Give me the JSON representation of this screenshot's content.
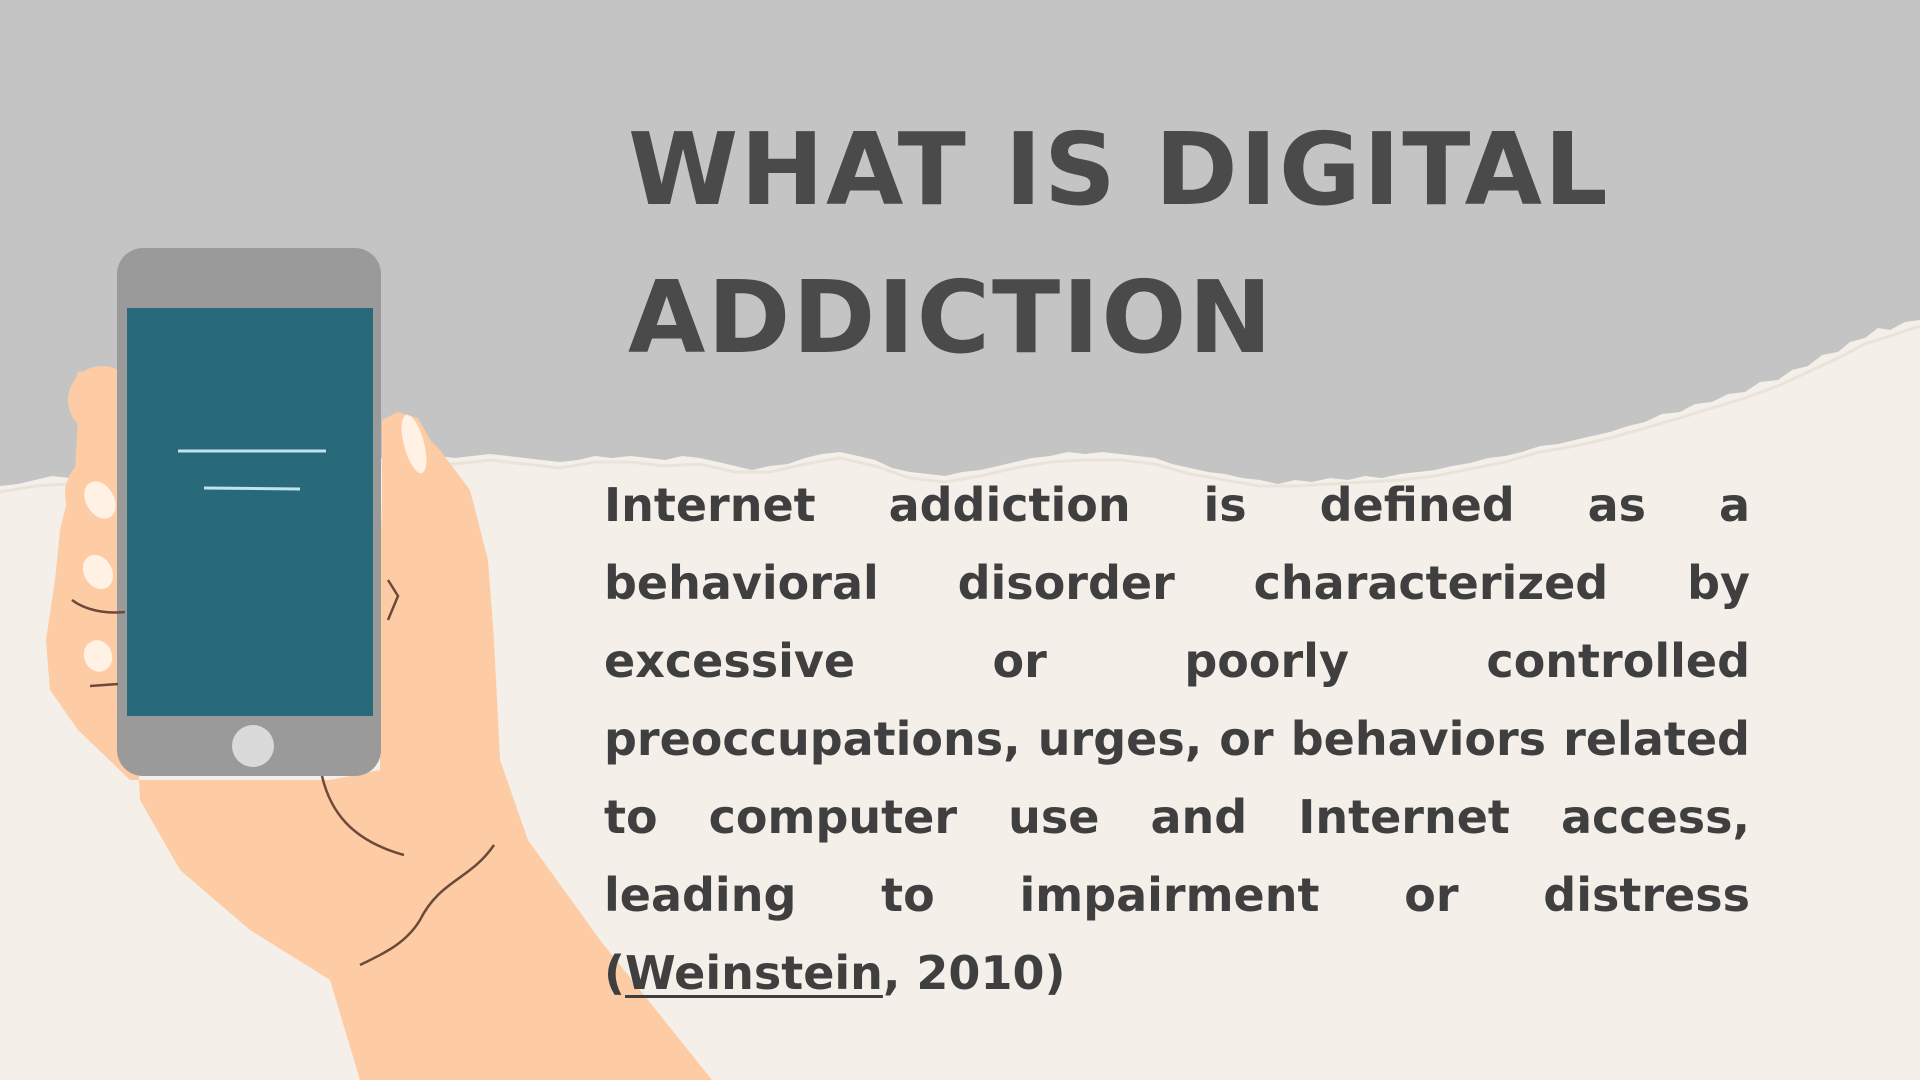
{
  "slide": {
    "title": "WHAT IS DIGITAL ADDICTION",
    "body_before_link": "Internet addiction is defined as a behavioral disorder characterized by excessive or poorly controlled preoccupations, urges, or behaviors related to computer use and Internet access, leading to impairment or distress (",
    "citation_link": "Weinstein",
    "body_after_link": ", 2010)"
  },
  "colors": {
    "top_band": "#c4c4c4",
    "paper": "#f4efe8",
    "title_text": "#4a4a4a",
    "body_text": "#3f3f3f",
    "skin": "#fdcca4",
    "phone_body": "#9a9a9a",
    "phone_screen": "#296a7a"
  },
  "illustration": {
    "icon": "hand-holding-phone-icon"
  }
}
